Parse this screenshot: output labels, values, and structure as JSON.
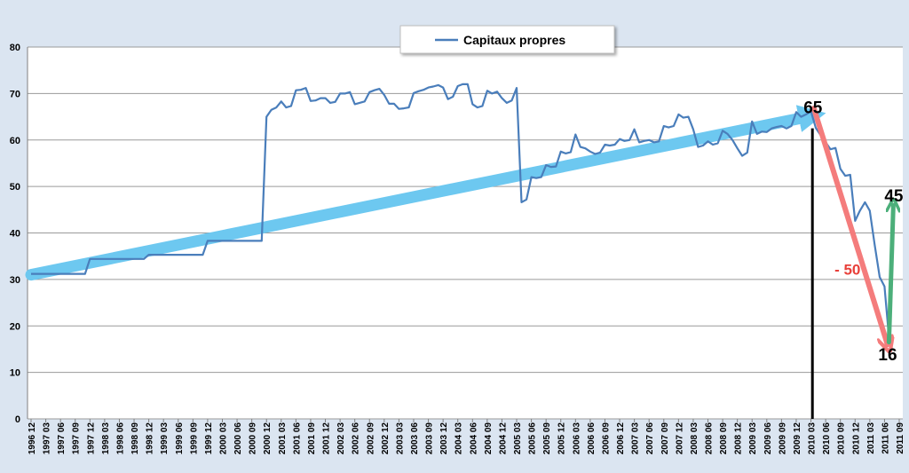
{
  "chart_data": {
    "type": "line",
    "title": "",
    "xlabel": "",
    "ylabel": "",
    "ylim": [
      0,
      80
    ],
    "yticks": [
      0,
      10,
      20,
      30,
      40,
      50,
      60,
      70,
      80
    ],
    "grid": true,
    "legend_position": "top-center",
    "colors": {
      "series": "#4a7ebb",
      "trend_up": "#6dc8f0",
      "drop_arrow": "#f47c7c",
      "rebound_arrow": "#4caf7a",
      "marker_line": "#000000",
      "background": "#dbe5f1"
    },
    "categories": [
      "1996 12",
      "1997 03",
      "1997 06",
      "1997 09",
      "1997 12",
      "1998 03",
      "1998 06",
      "1998 09",
      "1998 12",
      "1999 03",
      "1999 06",
      "1999 09",
      "1999 12",
      "2000 03",
      "2000 06",
      "2000 09",
      "2000 12",
      "2001 03",
      "2001 06",
      "2001 09",
      "2001 12",
      "2002 03",
      "2002 06",
      "2002 09",
      "2002 12",
      "2003 03",
      "2003 06",
      "2003 09",
      "2003 12",
      "2004 03",
      "2004 06",
      "2004 09",
      "2004 12",
      "2005 03",
      "2005 06",
      "2005 09",
      "2005 12",
      "2006 03",
      "2006 06",
      "2006 09",
      "2006 12",
      "2007 03",
      "2007 06",
      "2007 09",
      "2007 12",
      "2008 03",
      "2008 06",
      "2008 09",
      "2008 12",
      "2009 03",
      "2009 06",
      "2009 09",
      "2009 12",
      "2010 03",
      "2010 06",
      "2010 09",
      "2010 12",
      "2011 03",
      "2011 06",
      "2011 09"
    ],
    "series": [
      {
        "name": "Capitaux propres",
        "points": [
          [
            0,
            31.2
          ],
          [
            0.67,
            31.2
          ],
          [
            1.33,
            31.2
          ],
          [
            2,
            31.2
          ],
          [
            2.67,
            31.2
          ],
          [
            3.33,
            31.2
          ],
          [
            3.67,
            31.2
          ],
          [
            4,
            34.4
          ],
          [
            5,
            34.4
          ],
          [
            6,
            34.4
          ],
          [
            7,
            34.4
          ],
          [
            7.67,
            34.4
          ],
          [
            8,
            35.3
          ],
          [
            9,
            35.3
          ],
          [
            10,
            35.3
          ],
          [
            11,
            35.3
          ],
          [
            11.67,
            35.3
          ],
          [
            12,
            38.3
          ],
          [
            13,
            38.3
          ],
          [
            14,
            38.3
          ],
          [
            15,
            38.3
          ],
          [
            15.67,
            38.3
          ],
          [
            16,
            65
          ],
          [
            16.33,
            66.5
          ],
          [
            16.67,
            67
          ],
          [
            17,
            68.3
          ],
          [
            17.33,
            67
          ],
          [
            17.67,
            67.3
          ],
          [
            18,
            70.7
          ],
          [
            18.33,
            70.8
          ],
          [
            18.67,
            71.2
          ],
          [
            19,
            68.4
          ],
          [
            19.33,
            68.5
          ],
          [
            19.67,
            69
          ],
          [
            20,
            69
          ],
          [
            20.33,
            68
          ],
          [
            20.67,
            68.2
          ],
          [
            21,
            70
          ],
          [
            21.33,
            70
          ],
          [
            21.67,
            70.3
          ],
          [
            22,
            67.7
          ],
          [
            22.33,
            68
          ],
          [
            22.67,
            68.3
          ],
          [
            23,
            70.3
          ],
          [
            23.33,
            70.7
          ],
          [
            23.67,
            71
          ],
          [
            24,
            69.7
          ],
          [
            24.33,
            67.8
          ],
          [
            24.67,
            67.8
          ],
          [
            25,
            66.7
          ],
          [
            25.33,
            66.8
          ],
          [
            25.67,
            67
          ],
          [
            26,
            70.1
          ],
          [
            26.33,
            70.5
          ],
          [
            26.67,
            70.8
          ],
          [
            27,
            71.3
          ],
          [
            27.33,
            71.5
          ],
          [
            27.67,
            71.8
          ],
          [
            28,
            71.3
          ],
          [
            28.33,
            68.8
          ],
          [
            28.67,
            69.3
          ],
          [
            29,
            71.6
          ],
          [
            29.33,
            72
          ],
          [
            29.67,
            72
          ],
          [
            30,
            67.7
          ],
          [
            30.33,
            67
          ],
          [
            30.67,
            67.3
          ],
          [
            31,
            70.6
          ],
          [
            31.33,
            70
          ],
          [
            31.67,
            70.4
          ],
          [
            32,
            69
          ],
          [
            32.33,
            68
          ],
          [
            32.67,
            68.5
          ],
          [
            33,
            71.2
          ],
          [
            33.33,
            46.6
          ],
          [
            33.67,
            47.2
          ],
          [
            34,
            52
          ],
          [
            34.33,
            51.8
          ],
          [
            34.67,
            52
          ],
          [
            35,
            54.6
          ],
          [
            35.33,
            54.2
          ],
          [
            35.67,
            54.3
          ],
          [
            36,
            57.5
          ],
          [
            36.33,
            57.1
          ],
          [
            36.67,
            57.4
          ],
          [
            37,
            61.2
          ],
          [
            37.33,
            58.5
          ],
          [
            37.67,
            58.2
          ],
          [
            38,
            57.5
          ],
          [
            38.33,
            57
          ],
          [
            38.67,
            57.3
          ],
          [
            39,
            59
          ],
          [
            39.33,
            58.8
          ],
          [
            39.67,
            59
          ],
          [
            40,
            60.2
          ],
          [
            40.33,
            59.8
          ],
          [
            40.67,
            60
          ],
          [
            41,
            62.3
          ],
          [
            41.33,
            59.5
          ],
          [
            41.67,
            59.8
          ],
          [
            42,
            60
          ],
          [
            42.33,
            59.5
          ],
          [
            42.67,
            59.7
          ],
          [
            43,
            63
          ],
          [
            43.33,
            62.7
          ],
          [
            43.67,
            63
          ],
          [
            44,
            65.5
          ],
          [
            44.33,
            64.8
          ],
          [
            44.67,
            65
          ],
          [
            45,
            62.3
          ],
          [
            45.33,
            58.5
          ],
          [
            45.67,
            58.8
          ],
          [
            46,
            59.7
          ],
          [
            46.33,
            59
          ],
          [
            46.67,
            59.3
          ],
          [
            47,
            62
          ],
          [
            47.33,
            61.3
          ],
          [
            47.67,
            60
          ],
          [
            48,
            58.2
          ],
          [
            48.33,
            56.6
          ],
          [
            48.67,
            57.3
          ],
          [
            49,
            64
          ],
          [
            49.33,
            61.3
          ],
          [
            49.67,
            61.8
          ],
          [
            50,
            61.7
          ],
          [
            50.33,
            62.5
          ],
          [
            50.67,
            62.8
          ],
          [
            51,
            63
          ],
          [
            51.33,
            62.5
          ],
          [
            51.67,
            63
          ],
          [
            52,
            66
          ],
          [
            52.33,
            65
          ],
          [
            52.67,
            65.5
          ],
          [
            53,
            66.2
          ],
          [
            53.33,
            62.6
          ],
          [
            53.67,
            61
          ],
          [
            54,
            59.5
          ],
          [
            54.33,
            58
          ],
          [
            54.67,
            58.3
          ],
          [
            55,
            53.8
          ],
          [
            55.33,
            52.3
          ],
          [
            55.67,
            52.5
          ],
          [
            56,
            42.6
          ],
          [
            56.33,
            44.8
          ],
          [
            56.67,
            46.6
          ],
          [
            57,
            44.8
          ],
          [
            57.33,
            37.5
          ],
          [
            57.67,
            30.5
          ],
          [
            58,
            28.5
          ],
          [
            58.33,
            16.5
          ]
        ]
      }
    ],
    "annotations": {
      "peak_label": "65",
      "trough_label": "16",
      "rebound_label": "45",
      "drop_label": "- 50",
      "trend_start": [
        0,
        31
      ],
      "trend_end": [
        53.1,
        65.2
      ],
      "drop_start": [
        53.2,
        66.8
      ],
      "drop_end": [
        58.2,
        16
      ],
      "rebound_start": [
        58.3,
        16.5
      ],
      "rebound_end": [
        58.6,
        46
      ],
      "vline_x": 53.1,
      "vline_top": 62.5
    }
  }
}
